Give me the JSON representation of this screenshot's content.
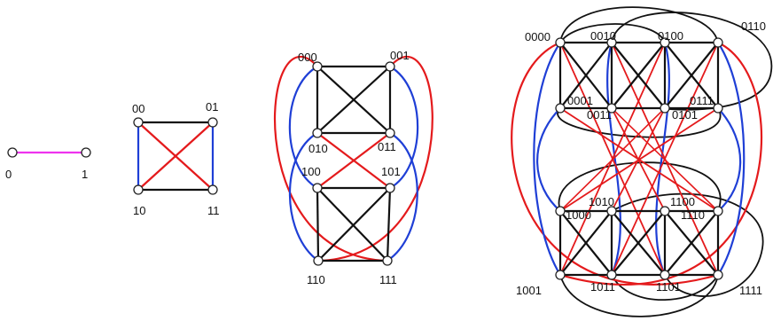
{
  "colors": {
    "magenta": "#ee33ee",
    "red": "#e41a1c",
    "blue": "#1f3fd6",
    "black": "#111111"
  },
  "graphs": [
    {
      "name": "graph-n1",
      "nodes": [
        {
          "id": "0",
          "label": "0"
        },
        {
          "id": "1",
          "label": "1"
        }
      ],
      "edges": [
        [
          "0",
          "1",
          "magenta"
        ]
      ]
    },
    {
      "name": "graph-n2",
      "nodes": [
        {
          "id": "00",
          "label": "00"
        },
        {
          "id": "01",
          "label": "01"
        },
        {
          "id": "10",
          "label": "10"
        },
        {
          "id": "11",
          "label": "11"
        }
      ],
      "edges": [
        [
          "00",
          "01",
          "black"
        ],
        [
          "10",
          "11",
          "black"
        ],
        [
          "00",
          "10",
          "blue"
        ],
        [
          "01",
          "11",
          "blue"
        ],
        [
          "00",
          "11",
          "red"
        ],
        [
          "01",
          "10",
          "red"
        ]
      ]
    },
    {
      "name": "graph-n3",
      "nodes": [
        {
          "id": "000",
          "label": "000"
        },
        {
          "id": "001",
          "label": "001"
        },
        {
          "id": "010",
          "label": "010"
        },
        {
          "id": "011",
          "label": "011"
        },
        {
          "id": "100",
          "label": "100"
        },
        {
          "id": "101",
          "label": "101"
        },
        {
          "id": "110",
          "label": "110"
        },
        {
          "id": "111",
          "label": "111"
        }
      ],
      "edges": [
        [
          "000",
          "001",
          "black"
        ],
        [
          "010",
          "011",
          "black"
        ],
        [
          "000",
          "010",
          "black"
        ],
        [
          "001",
          "011",
          "black"
        ],
        [
          "000",
          "011",
          "black"
        ],
        [
          "001",
          "010",
          "black"
        ],
        [
          "100",
          "101",
          "black"
        ],
        [
          "110",
          "111",
          "black"
        ],
        [
          "100",
          "110",
          "black"
        ],
        [
          "101",
          "111",
          "black"
        ],
        [
          "100",
          "111",
          "black"
        ],
        [
          "101",
          "110",
          "black"
        ],
        [
          "010",
          "101",
          "red"
        ],
        [
          "011",
          "100",
          "red"
        ],
        [
          "000",
          "100",
          "blue"
        ],
        [
          "001",
          "101",
          "blue"
        ],
        [
          "010",
          "110",
          "blue"
        ],
        [
          "011",
          "111",
          "blue"
        ],
        [
          "000",
          "111",
          "red"
        ],
        [
          "001",
          "110",
          "red"
        ]
      ]
    },
    {
      "name": "graph-n4",
      "nodes": [
        {
          "id": "0000",
          "label": "0000"
        },
        {
          "id": "0010",
          "label": "0010"
        },
        {
          "id": "0100",
          "label": "0100"
        },
        {
          "id": "0110",
          "label": "0110"
        },
        {
          "id": "0001",
          "label": "0001"
        },
        {
          "id": "0011",
          "label": "0011"
        },
        {
          "id": "0101",
          "label": "0101"
        },
        {
          "id": "0111",
          "label": "0111"
        },
        {
          "id": "1000",
          "label": "1000"
        },
        {
          "id": "1010",
          "label": "1010"
        },
        {
          "id": "1100",
          "label": "1100"
        },
        {
          "id": "1110",
          "label": "1110"
        },
        {
          "id": "1001",
          "label": "1001"
        },
        {
          "id": "1011",
          "label": "1011"
        },
        {
          "id": "1101",
          "label": "1101"
        },
        {
          "id": "1111",
          "label": "1111"
        }
      ]
    }
  ]
}
